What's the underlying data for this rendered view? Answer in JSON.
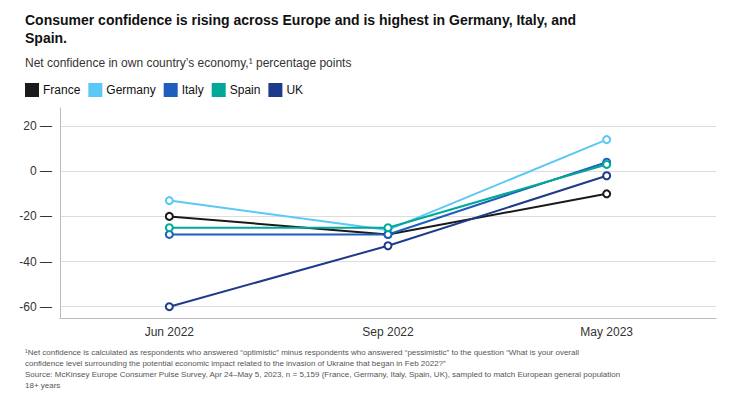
{
  "chart_data": {
    "type": "line",
    "title": "Consumer confidence is rising across Europe and is highest in Germany, Italy, and\nSpain.",
    "subtitle": "Net confidence in own country’s economy,¹ percentage points",
    "footnote": "¹Net confidence is calculated as respondents who answered “optimistic” minus respondents who answered “pessimistic” to the question “What is your overall\nconfidence level surrounding the potential economic impact related to the invasion of Ukraine that began in Feb 2022?”\nSource: McKinsey Europe Consumer Pulse Survey, Apr 24–May 5, 2023, n = 5,159 (France, Germany, Italy, Spain, UK), sampled to match European general population\n18+ years",
    "categories": [
      "Jun 2022",
      "Sep 2022",
      "May 2023"
    ],
    "series": [
      {
        "name": "France",
        "color": "#1a1a1a",
        "values": [
          -20,
          -28,
          -10
        ]
      },
      {
        "name": "Germany",
        "color": "#5BC8F5",
        "values": [
          -13,
          -26,
          14
        ]
      },
      {
        "name": "Italy",
        "color": "#1E5FBE",
        "values": [
          -28,
          -28,
          4
        ]
      },
      {
        "name": "Spain",
        "color": "#00A896",
        "values": [
          -25,
          -25,
          3
        ]
      },
      {
        "name": "UK",
        "color": "#1E3A8A",
        "values": [
          -60,
          -33,
          -2
        ]
      }
    ],
    "ylim": [
      -65,
      28
    ],
    "yticks": [
      {
        "value": -60,
        "label": "-60 —"
      },
      {
        "value": -40,
        "label": "-40 —"
      },
      {
        "value": -20,
        "label": "-20 —"
      },
      {
        "value": 0,
        "label": "0 —"
      },
      {
        "value": 20,
        "label": "20 —"
      }
    ],
    "grid": true,
    "legend": "upper left",
    "marker": "circle"
  }
}
